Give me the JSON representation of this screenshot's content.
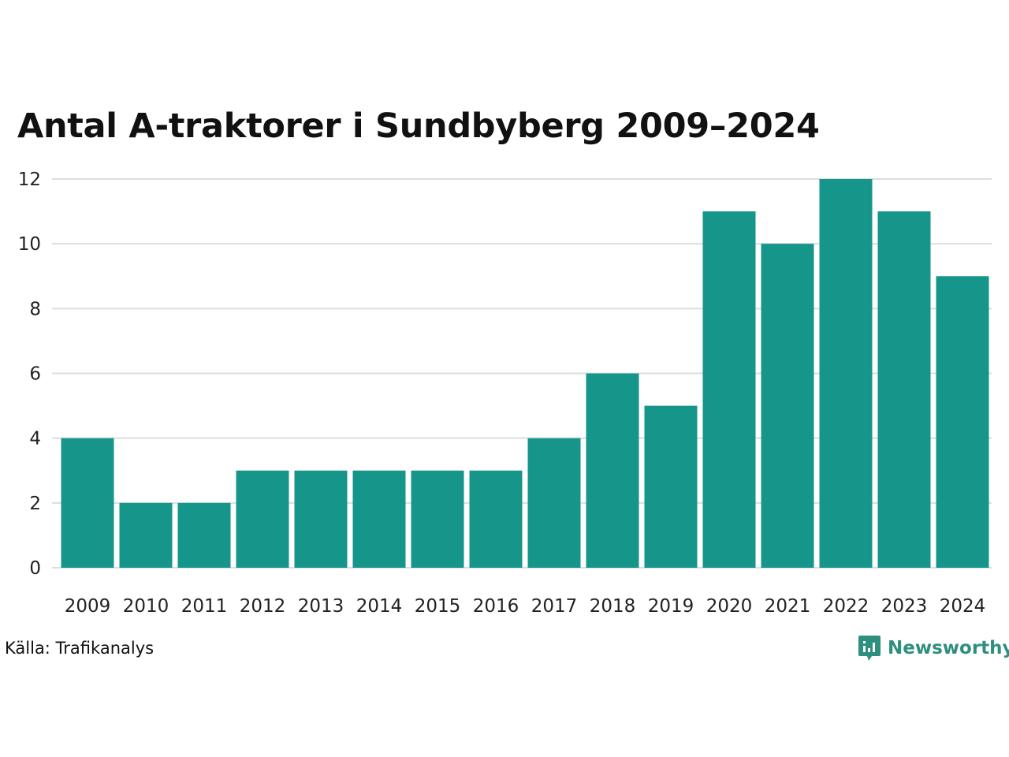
{
  "title": "Antal A-traktorer i Sundbyberg 2009–2024",
  "source": "Källa: Trafikanalys",
  "brand": {
    "name": "Newsworthy",
    "icon": "chart-bubble-icon",
    "color": "#2e8f7f"
  },
  "colors": {
    "bar": "#16968a",
    "grid": "#dddddd"
  },
  "chart_data": {
    "type": "bar",
    "title": "Antal A-traktorer i Sundbyberg 2009–2024",
    "xlabel": "",
    "ylabel": "",
    "categories": [
      "2009",
      "2010",
      "2011",
      "2012",
      "2013",
      "2014",
      "2015",
      "2016",
      "2017",
      "2018",
      "2019",
      "2020",
      "2021",
      "2022",
      "2023",
      "2024"
    ],
    "values": [
      4,
      2,
      2,
      3,
      3,
      3,
      3,
      3,
      4,
      6,
      5,
      11,
      10,
      12,
      11,
      9
    ],
    "ylim": [
      0,
      12
    ],
    "yticks": [
      0,
      2,
      4,
      6,
      8,
      10,
      12
    ],
    "grid": true,
    "legend": "none"
  }
}
